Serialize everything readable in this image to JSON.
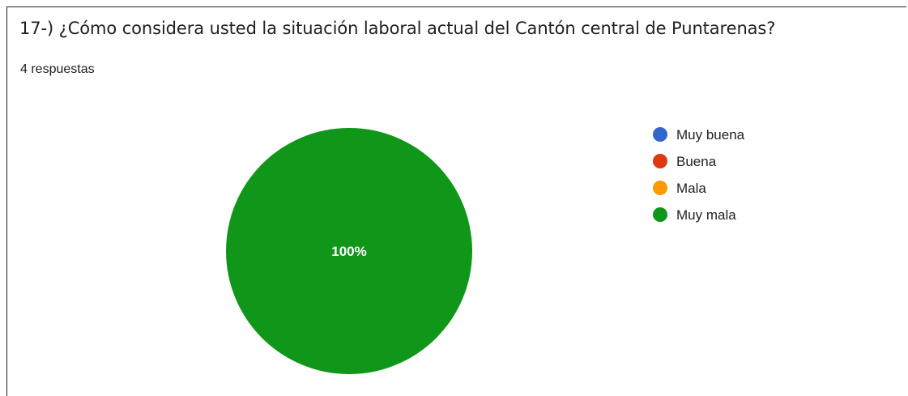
{
  "question": {
    "title": "17-) ¿Cómo considera usted la situación laboral actual del Cantón central de Puntarenas?",
    "response_count": "4 respuestas"
  },
  "chart_data": {
    "type": "pie",
    "categories": [
      "Muy buena",
      "Buena",
      "Mala",
      "Muy mala"
    ],
    "values": [
      0,
      0,
      0,
      4
    ],
    "colors": [
      "#3366cc",
      "#dc3912",
      "#ff9900",
      "#109618"
    ],
    "data_labels": [
      "",
      "",
      "",
      "100%"
    ],
    "legend_position": "right"
  }
}
